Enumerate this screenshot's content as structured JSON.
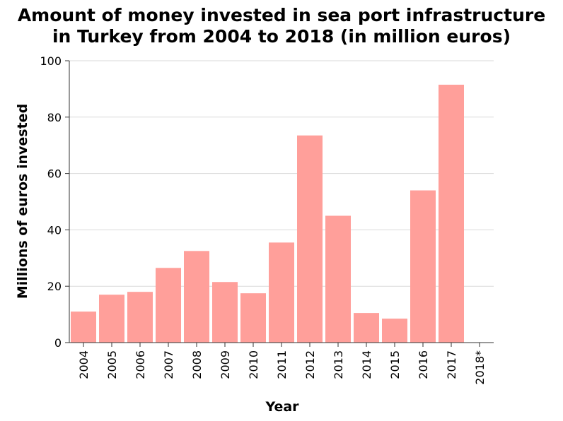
{
  "chart_data": {
    "type": "bar",
    "title_lines": [
      "Amount of money invested in sea port infrastructure",
      "in Turkey from 2004 to 2018 (in million euros)"
    ],
    "xlabel": "Year",
    "ylabel": "Millions of euros invested",
    "categories": [
      "2004",
      "2005",
      "2006",
      "2007",
      "2008",
      "2009",
      "2010",
      "2011",
      "2012",
      "2013",
      "2014",
      "2015",
      "2016",
      "2017",
      "2018*"
    ],
    "values": [
      11,
      17,
      18,
      26.5,
      32.5,
      21.5,
      17.5,
      35.5,
      73.5,
      45,
      10.5,
      8.5,
      54,
      91.5,
      null
    ],
    "ylim": [
      0,
      100
    ],
    "yticks": [
      "0",
      "20",
      "40",
      "60",
      "80",
      "100"
    ],
    "grid": true,
    "colors": {
      "bar": "#ff9f9a"
    }
  }
}
